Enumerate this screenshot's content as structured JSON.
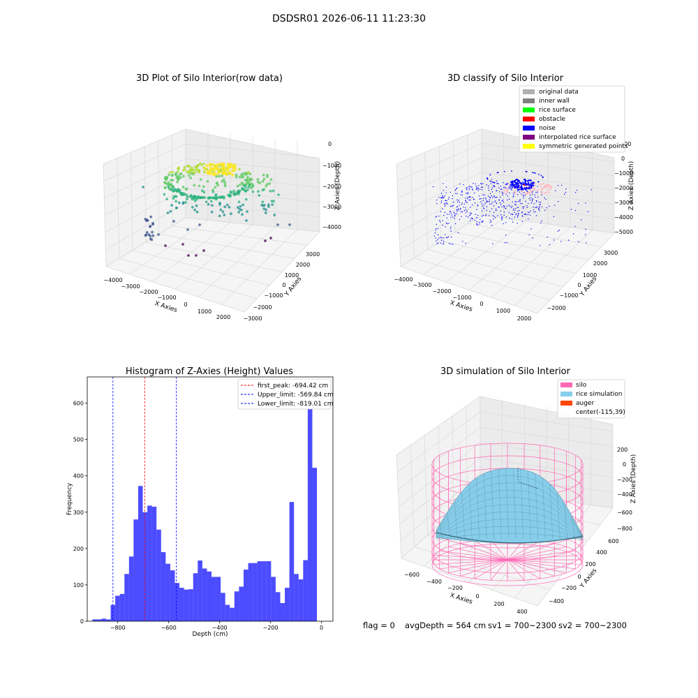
{
  "suptitle": "DSDSR01 2026-06-11 11:23:30",
  "footer": {
    "flag": "flag = 0",
    "avg": "avgDepth = 564 cm",
    "sv1": "sv1 = 700~2300",
    "sv2": "sv2 = 700~2300"
  },
  "panel1": {
    "title": "3D Plot of Silo Interior(row data)",
    "xlabel": "X Axies",
    "ylabel": "Y Axies",
    "zlabel": "Z Axies (Depth)",
    "xticks": [
      "−4000",
      "−3000",
      "−2000",
      "−1000",
      "0",
      "1000",
      "2000"
    ],
    "yticks": [
      "−3000",
      "−2000",
      "−1000",
      "0",
      "1000",
      "2000",
      "3000"
    ],
    "zticks": [
      "0",
      "−1000",
      "−2000",
      "−3000",
      "−4000"
    ]
  },
  "panel2": {
    "title": "3D classify of Silo Interior",
    "xlabel": "X Axies",
    "ylabel": "Y Axies",
    "zlabel": "Z Axies (Depth)",
    "xticks": [
      "−4000",
      "−3000",
      "−2000",
      "−1000",
      "0",
      "1000",
      "2000"
    ],
    "yticks": [
      "−2000",
      "−1000",
      "0",
      "1000",
      "2000",
      "3000"
    ],
    "zticks": [
      "1000",
      "0",
      "−1000",
      "−2000",
      "−3000",
      "−4000",
      "−5000"
    ],
    "legend": [
      {
        "label": "original data",
        "color": "#b0b0b0"
      },
      {
        "label": "inner wall",
        "color": "#808080"
      },
      {
        "label": "rice surface",
        "color": "#00ff00"
      },
      {
        "label": "obstacle",
        "color": "#ff0000"
      },
      {
        "label": "noise",
        "color": "#0000ff"
      },
      {
        "label": "interpolated rice surface",
        "color": "#800080"
      },
      {
        "label": "symmetric generated points",
        "color": "#ffff00"
      }
    ]
  },
  "panel4": {
    "title": "3D simulation of Silo Interior",
    "xlabel": "X Axies",
    "ylabel": "Y Axies",
    "zlabel": "Z Axies (Depth)",
    "xticks": [
      "−600",
      "−400",
      "−200",
      "0",
      "200",
      "400"
    ],
    "yticks": [
      "−400",
      "−200",
      "0",
      "200",
      "400",
      "600"
    ],
    "zticks": [
      "200",
      "0",
      "−200",
      "−400",
      "−600",
      "−800"
    ],
    "legend": [
      {
        "label": "silo",
        "color": "#ff69b4"
      },
      {
        "label": "rice simulation",
        "color": "#87ceeb"
      },
      {
        "label": "auger",
        "color": "#ff4500"
      },
      {
        "label": "center(-115,39)",
        "color": "none"
      }
    ]
  },
  "chart_data": {
    "type": "bar",
    "title": "Histogram of Z-Axies (Height) Values",
    "xlabel": "Depth (cm)",
    "ylabel": "Frequency",
    "xlim": [
      -920,
      45
    ],
    "ylim": [
      0,
      672
    ],
    "xticks": [
      -800,
      -600,
      -400,
      -200,
      0
    ],
    "xtick_labels": [
      "−800",
      "−600",
      "−400",
      "−200",
      "0"
    ],
    "yticks": [
      0,
      100,
      200,
      300,
      400,
      500,
      600
    ],
    "bin_start": -900,
    "bin_width": 18,
    "values": [
      5,
      5,
      7,
      5,
      45,
      70,
      75,
      130,
      178,
      280,
      372,
      300,
      318,
      315,
      252,
      190,
      158,
      140,
      105,
      92,
      87,
      88,
      132,
      167,
      145,
      137,
      122,
      122,
      78,
      45,
      37,
      82,
      95,
      142,
      160,
      160,
      165,
      165,
      165,
      122,
      80,
      50,
      92,
      328,
      130,
      115,
      168,
      635,
      422
    ],
    "bar_color": "#0000ff",
    "vlines": [
      {
        "label": "first_peak: -694.42 cm",
        "x": -694.42,
        "color": "#ff0000"
      },
      {
        "label": "Upper_limit: -569.84 cm",
        "x": -569.84,
        "color": "#0000ff"
      },
      {
        "label": "Lower_limit: -819.01 cm",
        "x": -819.01,
        "color": "#0000ff"
      }
    ],
    "legend_position": "top-right"
  }
}
